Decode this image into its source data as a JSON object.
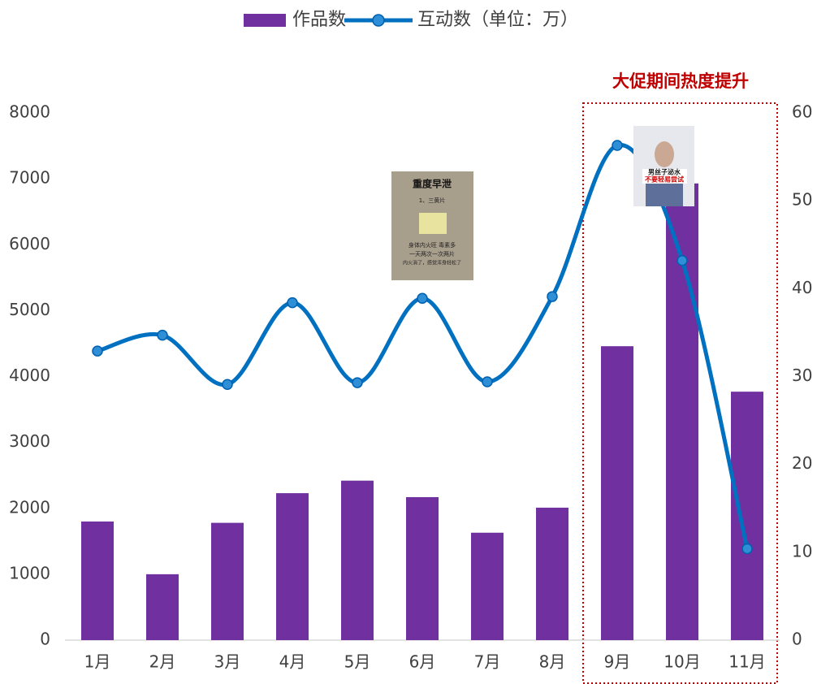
{
  "chart_data": {
    "type": "bar_line",
    "categories": [
      "1月",
      "2月",
      "3月",
      "4月",
      "5月",
      "6月",
      "7月",
      "8月",
      "9月",
      "10月",
      "11月"
    ],
    "series": [
      {
        "name": "作品数",
        "type": "bar",
        "color": "#7030a0",
        "values": [
          1800,
          1000,
          1780,
          2230,
          2420,
          2170,
          1630,
          2010,
          4460,
          6930,
          3770
        ]
      },
      {
        "name": "互动数（单位：万）",
        "type": "line",
        "axis": "y2",
        "color": "#0070c0",
        "values": [
          32.9,
          34.7,
          29.1,
          38.4,
          29.3,
          38.9,
          29.4,
          39.1,
          56.3,
          43.2,
          10.4
        ]
      }
    ],
    "ylim": [
      0,
      8000
    ],
    "yticks": [
      0,
      1000,
      2000,
      3000,
      4000,
      5000,
      6000,
      7000,
      8000
    ],
    "y2lim": [
      0,
      60
    ],
    "y2ticks": [
      0,
      10,
      20,
      30,
      40,
      50,
      60
    ],
    "annotation": "大促期间热度提升",
    "image_texts": [
      [
        "重度早泄",
        "1、三黄片",
        "身体内火旺 毒素多",
        "一天两次一次两片",
        "内火消了，感觉浑身轻松了"
      ],
      [
        "男丝子泌水",
        "不要轻易尝试"
      ]
    ],
    "legend": "top",
    "grid": false
  }
}
